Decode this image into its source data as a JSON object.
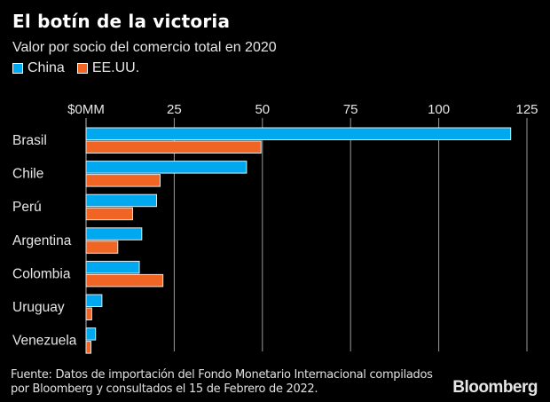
{
  "header": {
    "title": "El botín de la victoria",
    "subtitle": "Valor por socio del comercio total en 2020"
  },
  "footer": {
    "source_line1": "Fuente: Datos de importación del Fondo Monetario Internacional compilados",
    "source_line2": "por Bloomberg y consultados el 15 de Febrero de 2022.",
    "brand": "Bloomberg"
  },
  "chart_data": {
    "type": "bar",
    "orientation": "horizontal",
    "title": "El botín de la victoria",
    "subtitle": "Valor por socio del comercio total en 2020",
    "xlabel": "",
    "ylabel": "",
    "categories": [
      "Brasil",
      "Chile",
      "Perú",
      "Argentina",
      "Colombia",
      "Uruguay",
      "Venezuela"
    ],
    "series": [
      {
        "name": "China",
        "color": "#00a8f0",
        "values": [
          120.4,
          45.5,
          20.0,
          15.8,
          15.1,
          4.5,
          2.7
        ]
      },
      {
        "name": "EE.UU.",
        "color": "#f06424",
        "values": [
          49.6,
          21.0,
          13.2,
          9.0,
          21.8,
          1.6,
          1.4
        ]
      }
    ],
    "xlim": [
      0,
      125
    ],
    "xticks": [
      0,
      25,
      50,
      75,
      100,
      125
    ],
    "xtick_labels": [
      "$0MM",
      "25",
      "50",
      "75",
      "100",
      "125"
    ],
    "grid": true,
    "legend": "top-left",
    "background": "#000000"
  }
}
